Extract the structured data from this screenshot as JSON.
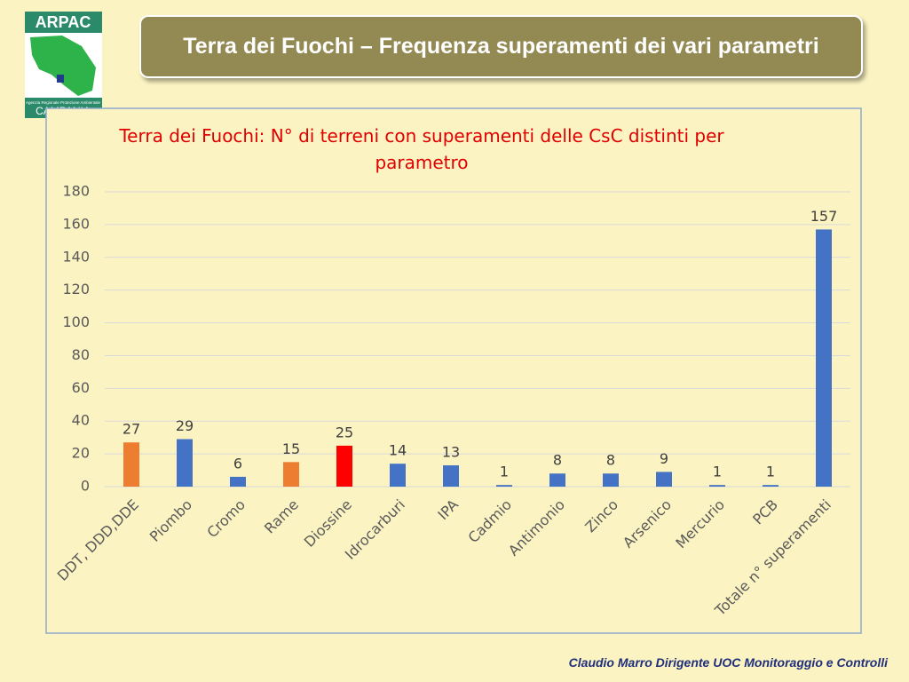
{
  "logo": {
    "name": "ARPAC",
    "subtitle": "Agenzia Regionale Protezione Ambientale",
    "region": "CAMPANIA"
  },
  "header": {
    "title": "Terra dei Fuochi – Frequenza superamenti dei vari parametri"
  },
  "footer": {
    "author": "Claudio Marro Dirigente UOC Monitoraggio e Controlli"
  },
  "chart_data": {
    "type": "bar",
    "title": "Terra dei Fuochi: N° di terreni con superamenti delle CsC distinti per parametro",
    "categories": [
      "DDT, DDD,DDE",
      "Piombo",
      "Cromo",
      "Rame",
      "Diossine",
      "Idrocarburi",
      "IPA",
      "Cadmio",
      "Antimonio",
      "Zinco",
      "Arsenico",
      "Mercurio",
      "PCB",
      "Totale n° superamenti"
    ],
    "values": [
      27,
      29,
      6,
      15,
      25,
      14,
      13,
      1,
      8,
      8,
      9,
      1,
      1,
      157
    ],
    "colors": [
      "#ed7d31",
      "#4472c4",
      "#4472c4",
      "#ed7d31",
      "#ff0000",
      "#4472c4",
      "#4472c4",
      "#4472c4",
      "#4472c4",
      "#4472c4",
      "#4472c4",
      "#4472c4",
      "#4472c4",
      "#4472c4"
    ],
    "ylim": [
      0,
      180
    ],
    "yticks": [
      0,
      20,
      40,
      60,
      80,
      100,
      120,
      140,
      160,
      180
    ],
    "grid": true
  }
}
